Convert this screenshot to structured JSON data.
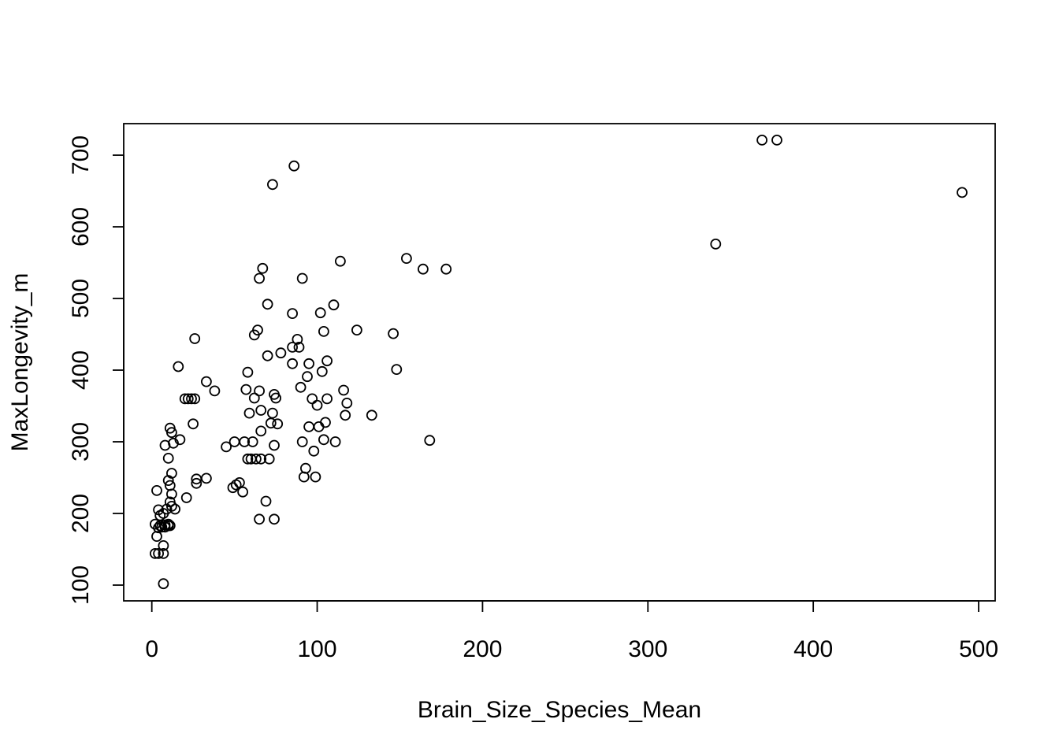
{
  "chart_data": {
    "type": "scatter",
    "title": "",
    "xlabel": "Brain_Size_Species_Mean",
    "ylabel": "MaxLongevity_m",
    "xlim": [
      -17,
      510
    ],
    "ylim": [
      78,
      744
    ],
    "x_ticks": [
      0,
      100,
      200,
      300,
      400,
      500
    ],
    "y_ticks": [
      100,
      200,
      300,
      400,
      500,
      600,
      700
    ],
    "x_tick_labels": [
      "0",
      "100",
      "200",
      "300",
      "400",
      "500"
    ],
    "y_tick_labels": [
      "100",
      "200",
      "300",
      "400",
      "500",
      "600",
      "700"
    ],
    "grid": false,
    "legend": "none",
    "marker": "open-circle",
    "points": [
      [
        2,
        185
      ],
      [
        2,
        144
      ],
      [
        3,
        168
      ],
      [
        3,
        232
      ],
      [
        4,
        144
      ],
      [
        4,
        205
      ],
      [
        4,
        180
      ],
      [
        5,
        197
      ],
      [
        5,
        183
      ],
      [
        6,
        181
      ],
      [
        7,
        200
      ],
      [
        7,
        102
      ],
      [
        7,
        144
      ],
      [
        7,
        155
      ],
      [
        8,
        181
      ],
      [
        8,
        295
      ],
      [
        8,
        184
      ],
      [
        9,
        206
      ],
      [
        10,
        183
      ],
      [
        10,
        277
      ],
      [
        10,
        185
      ],
      [
        10,
        246
      ],
      [
        11,
        319
      ],
      [
        11,
        239
      ],
      [
        11,
        216
      ],
      [
        11,
        183
      ],
      [
        12,
        227
      ],
      [
        12,
        210
      ],
      [
        12,
        256
      ],
      [
        12,
        313
      ],
      [
        13,
        298
      ],
      [
        14,
        206
      ],
      [
        16,
        405
      ],
      [
        17,
        303
      ],
      [
        20,
        360
      ],
      [
        21,
        222
      ],
      [
        22,
        360
      ],
      [
        24,
        360
      ],
      [
        25,
        325
      ],
      [
        26,
        360
      ],
      [
        26,
        444
      ],
      [
        27,
        242
      ],
      [
        27,
        248
      ],
      [
        33,
        249
      ],
      [
        33,
        384
      ],
      [
        38,
        371
      ],
      [
        45,
        293
      ],
      [
        49,
        236
      ],
      [
        50,
        300
      ],
      [
        51,
        240
      ],
      [
        53,
        243
      ],
      [
        55,
        230
      ],
      [
        56,
        300
      ],
      [
        57,
        373
      ],
      [
        58,
        397
      ],
      [
        58,
        276
      ],
      [
        59,
        340
      ],
      [
        60,
        276
      ],
      [
        61,
        300
      ],
      [
        62,
        361
      ],
      [
        62,
        449
      ],
      [
        63,
        276
      ],
      [
        64,
        456
      ],
      [
        65,
        371
      ],
      [
        65,
        192
      ],
      [
        65,
        528
      ],
      [
        66,
        344
      ],
      [
        66,
        276
      ],
      [
        66,
        315
      ],
      [
        67,
        542
      ],
      [
        69,
        217
      ],
      [
        70,
        420
      ],
      [
        70,
        492
      ],
      [
        71,
        276
      ],
      [
        72,
        326
      ],
      [
        73,
        340
      ],
      [
        73,
        659
      ],
      [
        74,
        366
      ],
      [
        74,
        192
      ],
      [
        74,
        295
      ],
      [
        75,
        361
      ],
      [
        76,
        325
      ],
      [
        78,
        424
      ],
      [
        85,
        409
      ],
      [
        85,
        479
      ],
      [
        85,
        432
      ],
      [
        86,
        685
      ],
      [
        88,
        443
      ],
      [
        89,
        432
      ],
      [
        90,
        376
      ],
      [
        91,
        528
      ],
      [
        91,
        300
      ],
      [
        92,
        251
      ],
      [
        93,
        263
      ],
      [
        94,
        391
      ],
      [
        95,
        321
      ],
      [
        95,
        409
      ],
      [
        97,
        360
      ],
      [
        98,
        287
      ],
      [
        99,
        251
      ],
      [
        100,
        351
      ],
      [
        101,
        321
      ],
      [
        102,
        480
      ],
      [
        103,
        398
      ],
      [
        104,
        303
      ],
      [
        104,
        454
      ],
      [
        105,
        327
      ],
      [
        106,
        413
      ],
      [
        106,
        360
      ],
      [
        110,
        491
      ],
      [
        111,
        300
      ],
      [
        114,
        552
      ],
      [
        116,
        372
      ],
      [
        117,
        337
      ],
      [
        118,
        354
      ],
      [
        124,
        456
      ],
      [
        133,
        337
      ],
      [
        146,
        451
      ],
      [
        148,
        401
      ],
      [
        154,
        556
      ],
      [
        164,
        541
      ],
      [
        168,
        302
      ],
      [
        178,
        541
      ],
      [
        341,
        576
      ],
      [
        369,
        721
      ],
      [
        378,
        721
      ],
      [
        490,
        648
      ]
    ]
  }
}
